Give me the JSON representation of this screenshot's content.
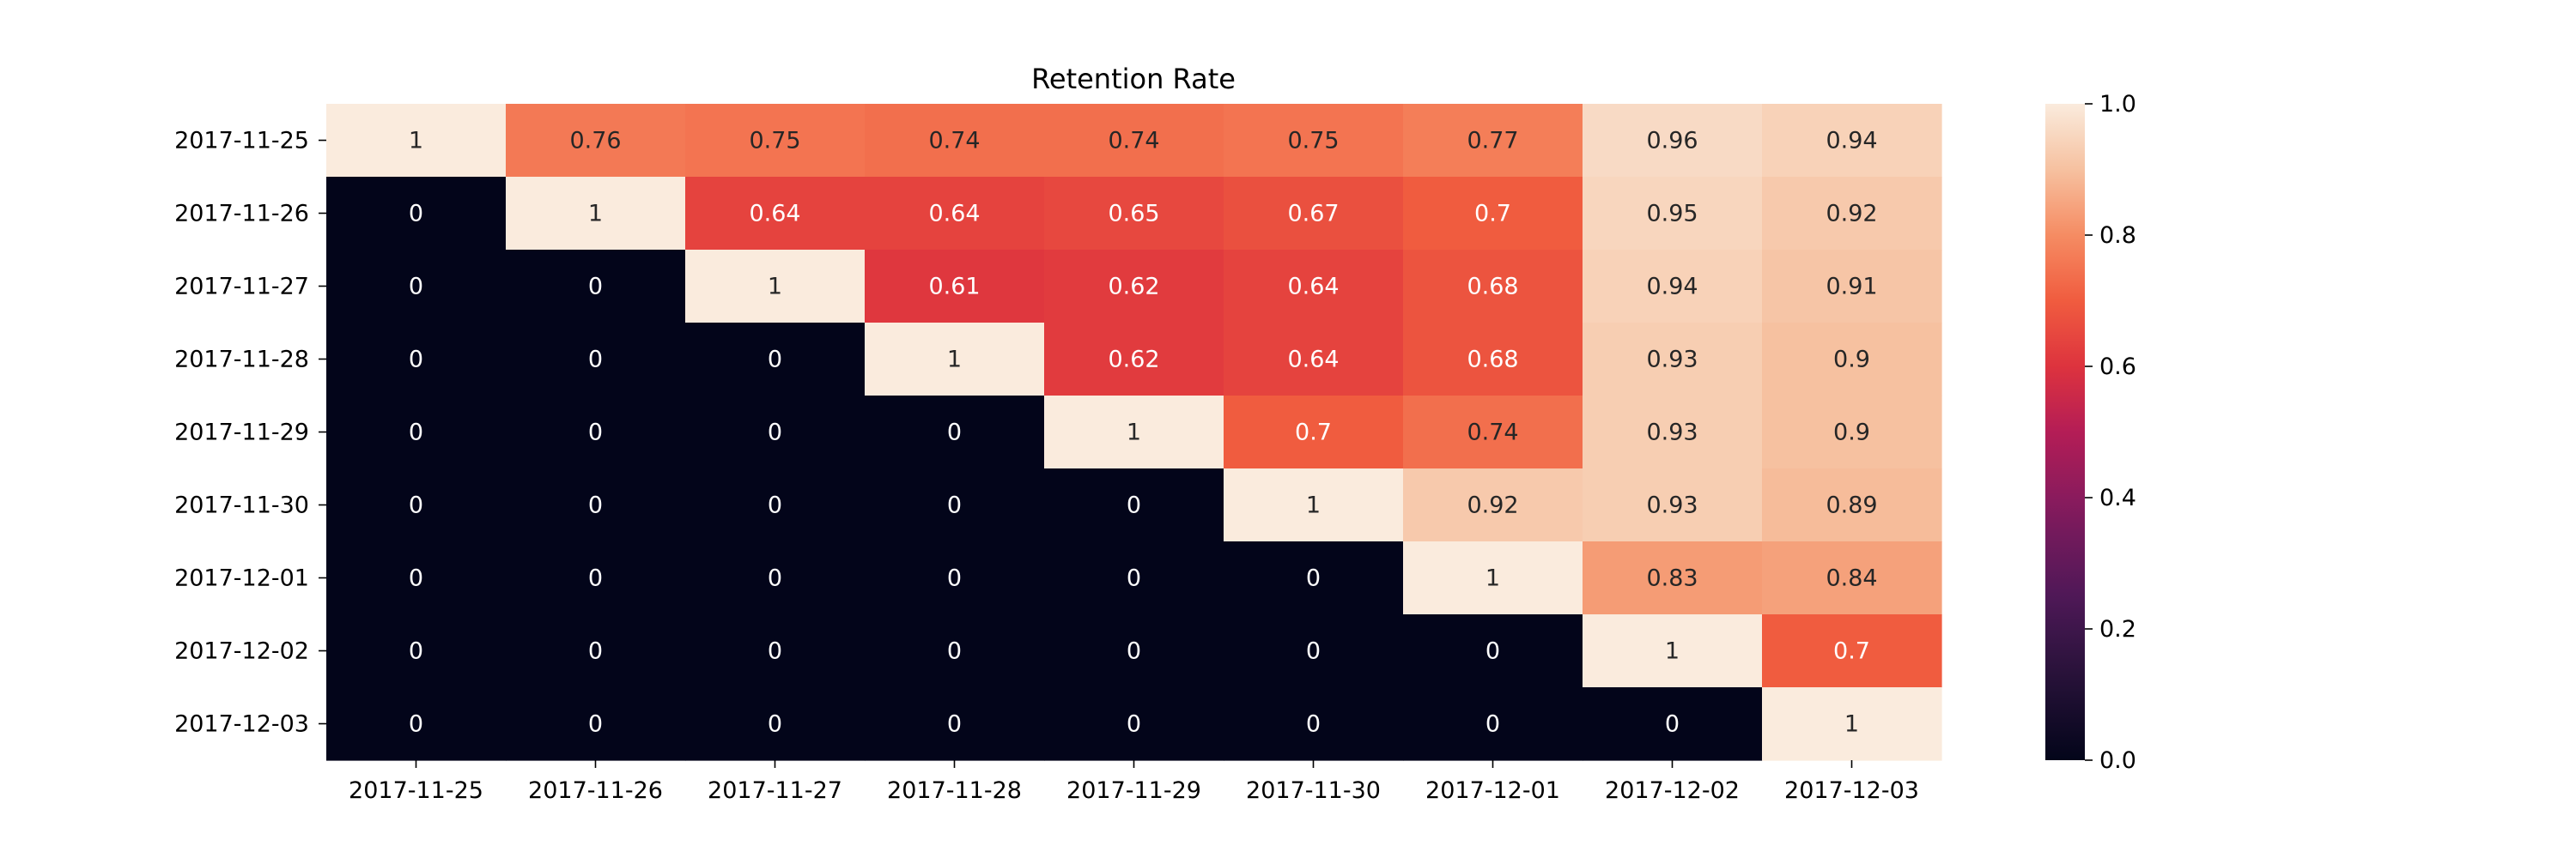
{
  "chart_data": {
    "type": "heatmap",
    "title": "Retention Rate",
    "xlabel": "",
    "ylabel": "",
    "x_categories": [
      "2017-11-25",
      "2017-11-26",
      "2017-11-27",
      "2017-11-28",
      "2017-11-29",
      "2017-11-30",
      "2017-12-01",
      "2017-12-02",
      "2017-12-03"
    ],
    "y_categories": [
      "2017-11-25",
      "2017-11-26",
      "2017-11-27",
      "2017-11-28",
      "2017-11-29",
      "2017-11-30",
      "2017-12-01",
      "2017-12-02",
      "2017-12-03"
    ],
    "values": [
      [
        1,
        0.76,
        0.75,
        0.74,
        0.74,
        0.75,
        0.77,
        0.96,
        0.94
      ],
      [
        0,
        1,
        0.64,
        0.64,
        0.65,
        0.67,
        0.7,
        0.95,
        0.92
      ],
      [
        0,
        0,
        1,
        0.61,
        0.62,
        0.64,
        0.68,
        0.94,
        0.91
      ],
      [
        0,
        0,
        0,
        1,
        0.62,
        0.64,
        0.68,
        0.93,
        0.9
      ],
      [
        0,
        0,
        0,
        0,
        1,
        0.7,
        0.74,
        0.93,
        0.9
      ],
      [
        0,
        0,
        0,
        0,
        0,
        1,
        0.92,
        0.93,
        0.89
      ],
      [
        0,
        0,
        0,
        0,
        0,
        0,
        1,
        0.83,
        0.84
      ],
      [
        0,
        0,
        0,
        0,
        0,
        0,
        0,
        1,
        0.7
      ],
      [
        0,
        0,
        0,
        0,
        0,
        0,
        0,
        0,
        1
      ]
    ],
    "colorbar": {
      "min": 0.0,
      "max": 1.0,
      "ticks": [
        0.0,
        0.2,
        0.4,
        0.6,
        0.8,
        1.0
      ],
      "tick_labels": [
        "0.0",
        "0.2",
        "0.4",
        "0.6",
        "0.8",
        "1.0"
      ],
      "colormap": "rocket"
    },
    "grid": false
  }
}
